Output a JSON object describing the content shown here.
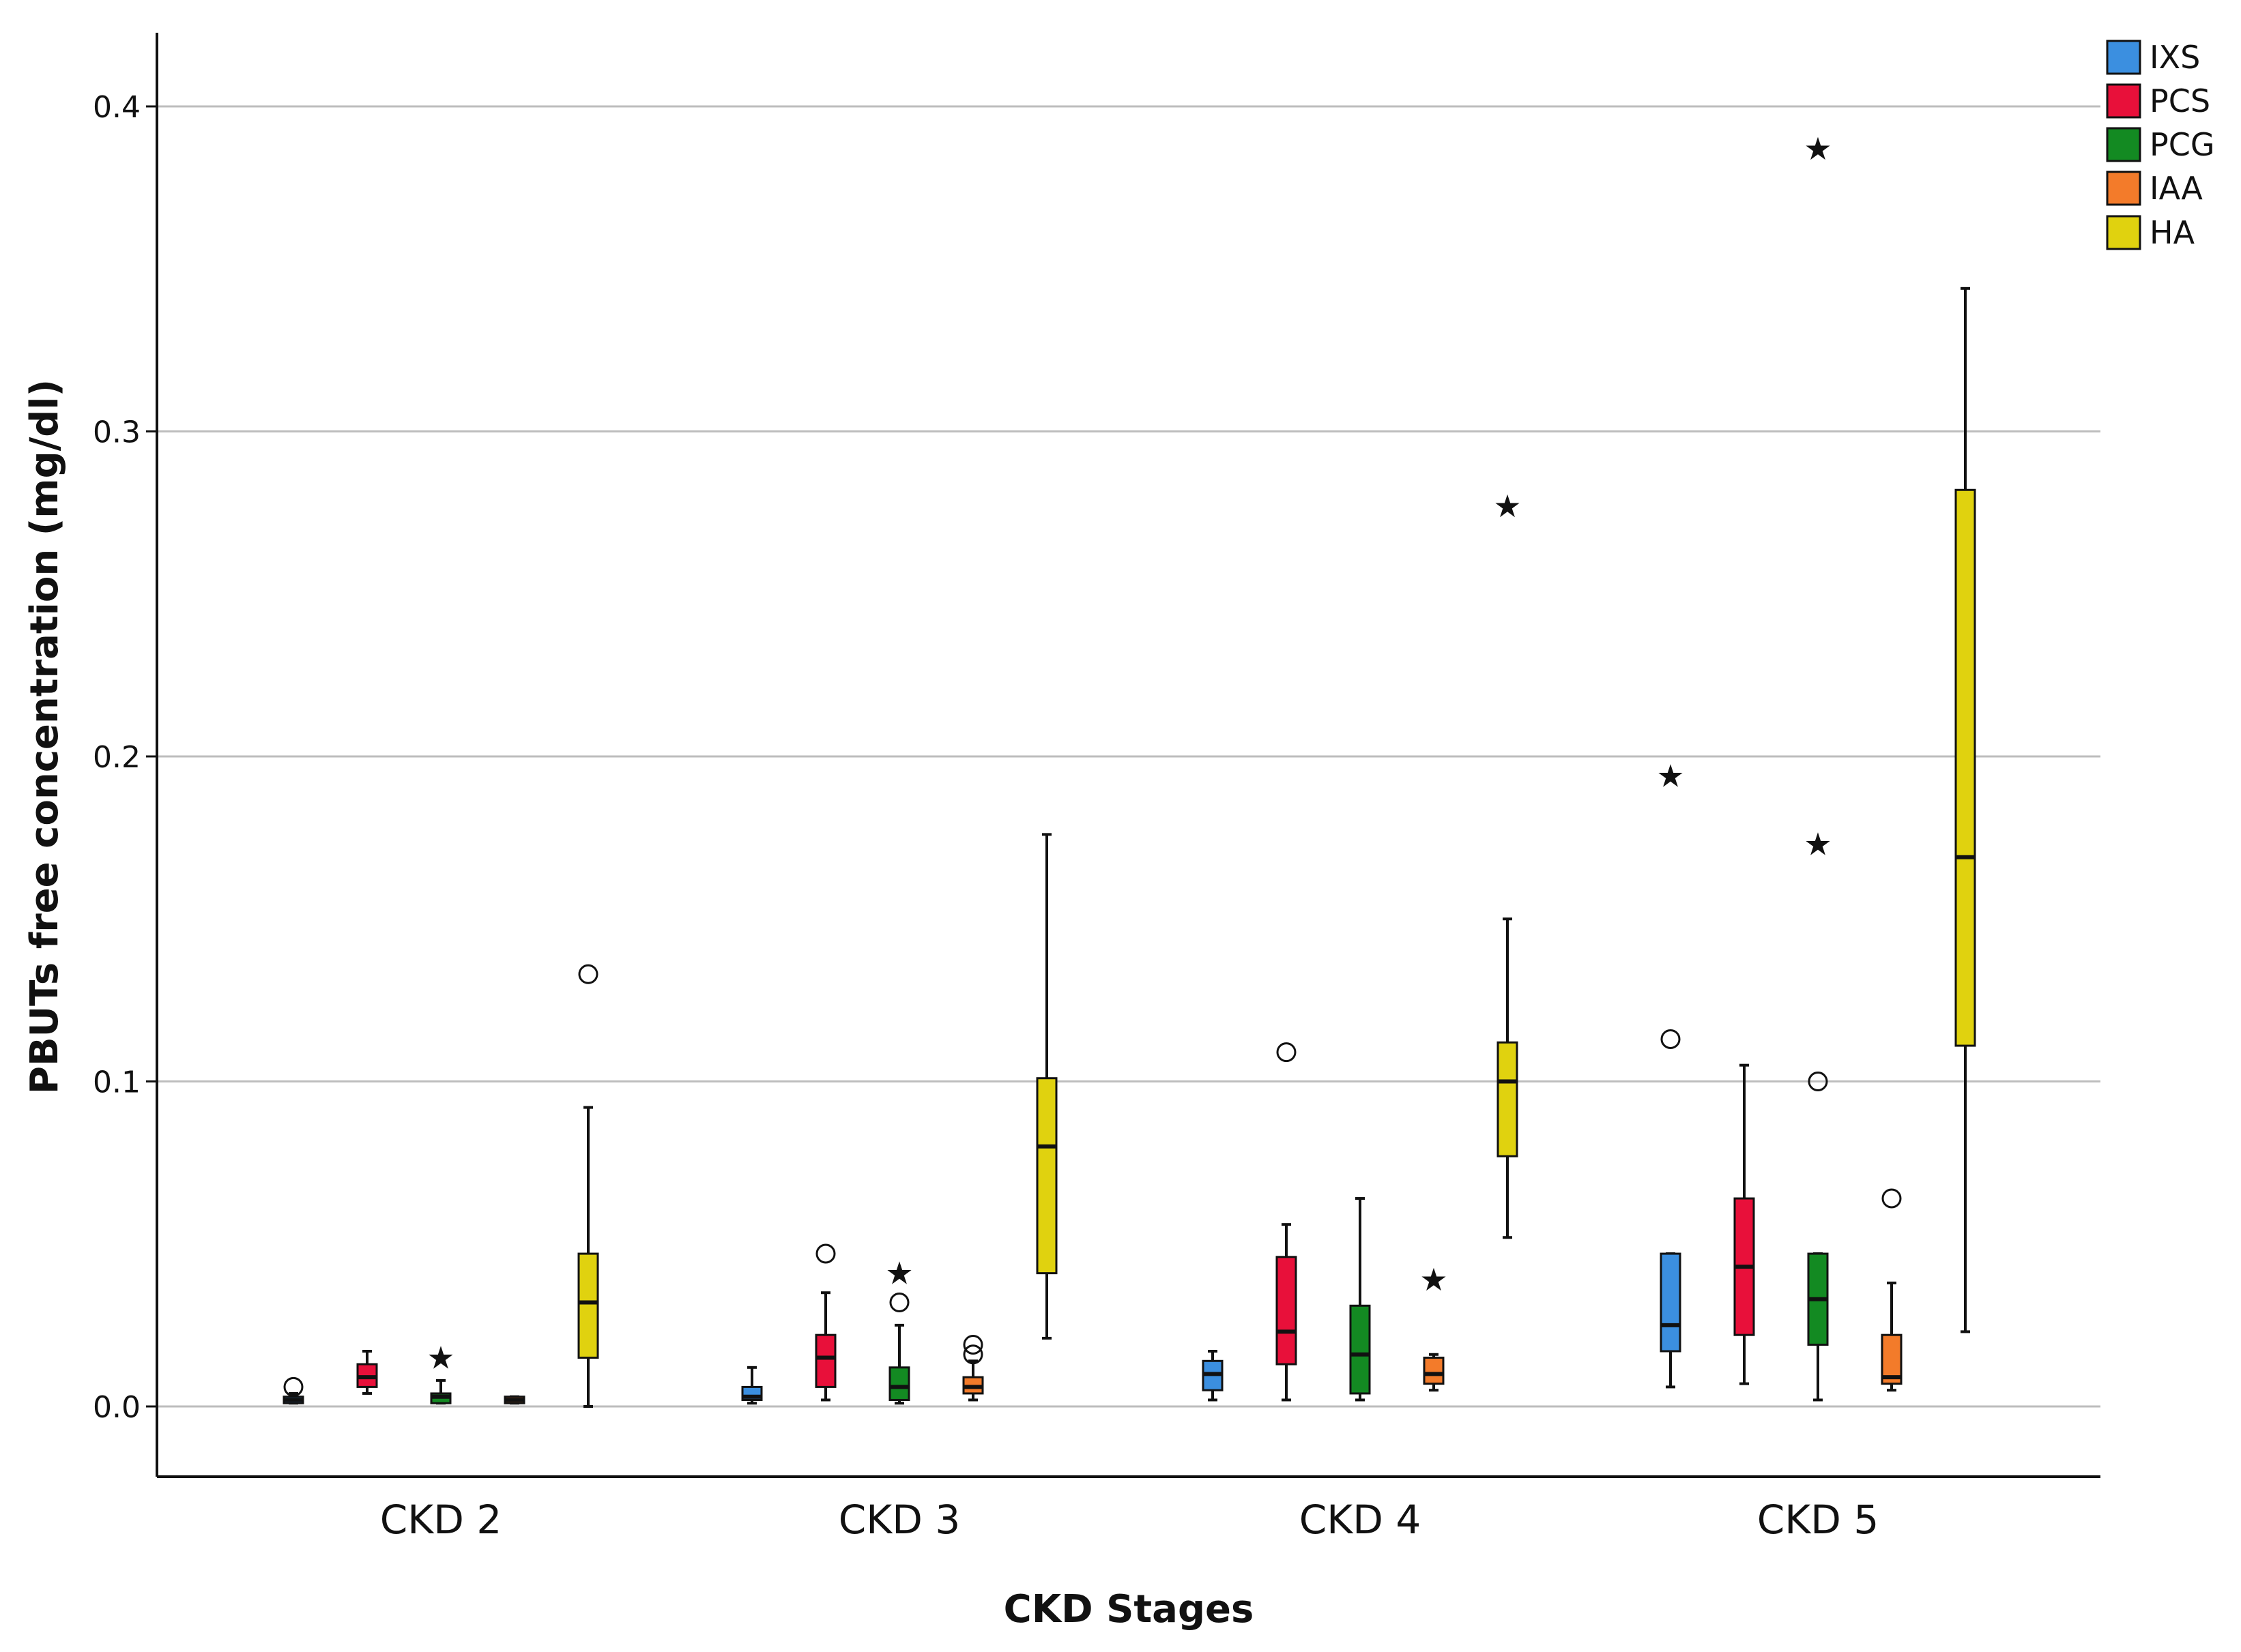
{
  "chart_data": {
    "type": "boxplot",
    "title": "",
    "xlabel": "CKD Stages",
    "ylabel": "PBUTs free concentration (mg/dl)",
    "ylim": [
      -0.022,
      0.423
    ],
    "yticks": [
      0.0,
      0.1,
      0.2,
      0.3,
      0.4
    ],
    "ytick_labels": [
      "0.0",
      "0.1",
      "0.2",
      "0.3",
      "0.4"
    ],
    "grid": "horizontal",
    "legend_position": "top-right",
    "categories": [
      "CKD 2",
      "CKD 3",
      "CKD 4",
      "CKD 5"
    ],
    "series": [
      {
        "name": "IXS",
        "color": "#3b8fe0",
        "boxes": [
          {
            "min": 0.001,
            "q1": 0.001,
            "median": 0.002,
            "q3": 0.003,
            "max": 0.004,
            "outliers": [
              {
                "value": 0.006,
                "marker": "circle"
              }
            ]
          },
          {
            "min": 0.001,
            "q1": 0.002,
            "median": 0.003,
            "q3": 0.006,
            "max": 0.012,
            "outliers": []
          },
          {
            "min": 0.002,
            "q1": 0.005,
            "median": 0.01,
            "q3": 0.014,
            "max": 0.017,
            "outliers": []
          },
          {
            "min": 0.006,
            "q1": 0.017,
            "median": 0.025,
            "q3": 0.047,
            "max": 0.047,
            "outliers": [
              {
                "value": 0.113,
                "marker": "circle"
              },
              {
                "value": 0.194,
                "marker": "star"
              }
            ]
          }
        ]
      },
      {
        "name": "PCS",
        "color": "#e8103a",
        "boxes": [
          {
            "min": 0.004,
            "q1": 0.006,
            "median": 0.009,
            "q3": 0.013,
            "max": 0.017,
            "outliers": []
          },
          {
            "min": 0.002,
            "q1": 0.006,
            "median": 0.015,
            "q3": 0.022,
            "max": 0.035,
            "outliers": [
              {
                "value": 0.047,
                "marker": "circle"
              }
            ]
          },
          {
            "min": 0.002,
            "q1": 0.013,
            "median": 0.023,
            "q3": 0.046,
            "max": 0.056,
            "outliers": [
              {
                "value": 0.109,
                "marker": "circle"
              }
            ]
          },
          {
            "min": 0.007,
            "q1": 0.022,
            "median": 0.043,
            "q3": 0.064,
            "max": 0.105,
            "outliers": []
          }
        ]
      },
      {
        "name": "PCG",
        "color": "#138a22",
        "boxes": [
          {
            "min": 0.001,
            "q1": 0.001,
            "median": 0.003,
            "q3": 0.004,
            "max": 0.008,
            "outliers": [
              {
                "value": 0.015,
                "marker": "star"
              }
            ]
          },
          {
            "min": 0.001,
            "q1": 0.002,
            "median": 0.006,
            "q3": 0.012,
            "max": 0.025,
            "outliers": [
              {
                "value": 0.032,
                "marker": "circle"
              },
              {
                "value": 0.041,
                "marker": "star"
              }
            ]
          },
          {
            "min": 0.002,
            "q1": 0.004,
            "median": 0.016,
            "q3": 0.031,
            "max": 0.064,
            "outliers": []
          },
          {
            "min": 0.002,
            "q1": 0.019,
            "median": 0.033,
            "q3": 0.047,
            "max": 0.047,
            "outliers": [
              {
                "value": 0.1,
                "marker": "circle"
              },
              {
                "value": 0.173,
                "marker": "star"
              },
              {
                "value": 0.387,
                "marker": "star"
              }
            ]
          }
        ]
      },
      {
        "name": "IAA",
        "color": "#f37b2a",
        "boxes": [
          {
            "min": 0.001,
            "q1": 0.001,
            "median": 0.002,
            "q3": 0.003,
            "max": 0.003,
            "outliers": []
          },
          {
            "min": 0.002,
            "q1": 0.004,
            "median": 0.006,
            "q3": 0.009,
            "max": 0.014,
            "outliers": [
              {
                "value": 0.016,
                "marker": "circle"
              },
              {
                "value": 0.019,
                "marker": "circle"
              }
            ]
          },
          {
            "min": 0.005,
            "q1": 0.007,
            "median": 0.01,
            "q3": 0.015,
            "max": 0.016,
            "outliers": [
              {
                "value": 0.039,
                "marker": "star"
              }
            ]
          },
          {
            "min": 0.005,
            "q1": 0.007,
            "median": 0.009,
            "q3": 0.022,
            "max": 0.038,
            "outliers": [
              {
                "value": 0.064,
                "marker": "circle"
              }
            ]
          }
        ]
      },
      {
        "name": "HA",
        "color": "#e0d20f",
        "boxes": [
          {
            "min": 0.0,
            "q1": 0.015,
            "median": 0.032,
            "q3": 0.047,
            "max": 0.092,
            "outliers": [
              {
                "value": 0.133,
                "marker": "circle"
              }
            ]
          },
          {
            "min": 0.021,
            "q1": 0.041,
            "median": 0.08,
            "q3": 0.101,
            "max": 0.176,
            "outliers": []
          },
          {
            "min": 0.052,
            "q1": 0.077,
            "median": 0.1,
            "q3": 0.112,
            "max": 0.15,
            "outliers": [
              {
                "value": 0.277,
                "marker": "star"
              }
            ]
          },
          {
            "min": 0.023,
            "q1": 0.111,
            "median": 0.169,
            "q3": 0.282,
            "max": 0.344,
            "outliers": []
          }
        ]
      }
    ]
  }
}
